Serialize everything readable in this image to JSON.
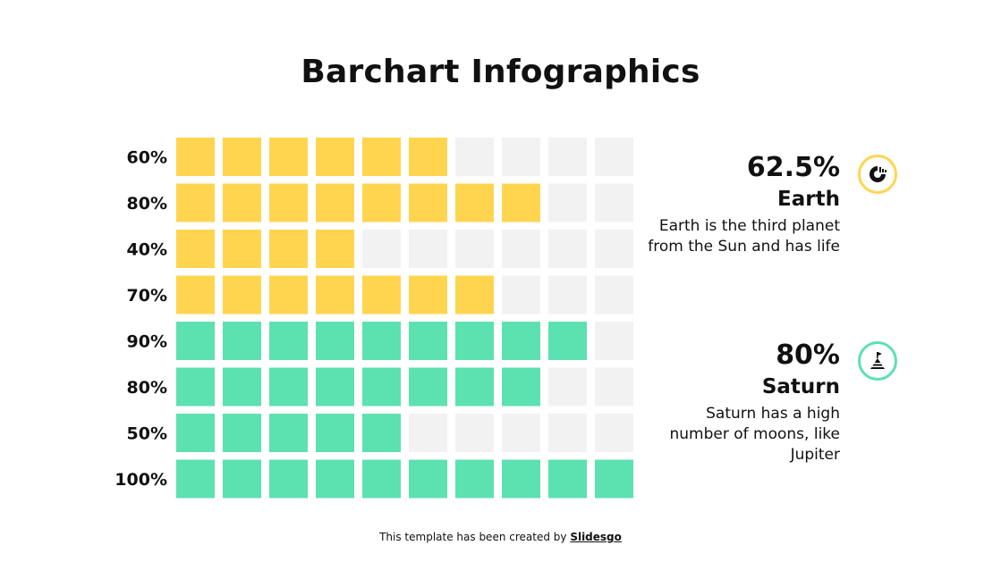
{
  "title": "Barchart Infographics",
  "chart_data": {
    "type": "waffle-bar",
    "cells_per_row": 10,
    "categories": [
      "60%",
      "80%",
      "40%",
      "70%",
      "90%",
      "80%",
      "50%",
      "100%"
    ],
    "values": [
      60,
      80,
      40,
      70,
      90,
      80,
      50,
      100
    ],
    "row_colors": [
      "#ffd54f",
      "#ffd54f",
      "#ffd54f",
      "#ffd54f",
      "#5ce1b0",
      "#5ce1b0",
      "#5ce1b0",
      "#5ce1b0"
    ],
    "empty_color": "#f2f2f2",
    "xlabel": "",
    "ylabel": "",
    "grid": false
  },
  "stats": {
    "earth": {
      "percent": "62.5%",
      "name": "Earth",
      "description": "Earth is the third planet from the Sun and has life",
      "icon": "chart-icon",
      "color": "#ffd54f"
    },
    "saturn": {
      "percent": "80%",
      "name": "Saturn",
      "description": "Saturn has a high number of moons, like Jupiter",
      "icon": "mountain-flag-icon",
      "color": "#5ce1b0"
    }
  },
  "footer": {
    "text": "This template has been created by",
    "brand": "Slidesgo"
  }
}
